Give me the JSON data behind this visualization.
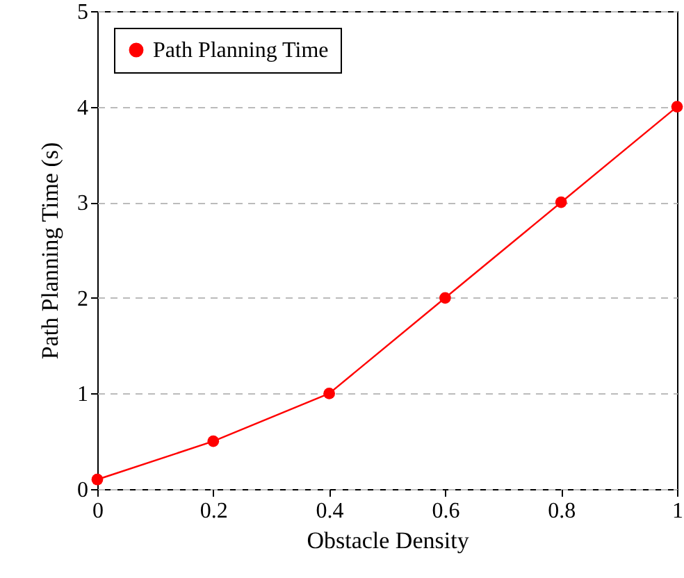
{
  "chart_data": {
    "type": "line",
    "xlabel": "Obstacle Density",
    "ylabel": "Path Planning Time (s)",
    "x": [
      0,
      0.2,
      0.4,
      0.6,
      0.8,
      1
    ],
    "series": [
      {
        "name": "Path Planning Time",
        "color": "#ff0000",
        "values": [
          0.1,
          0.5,
          1,
          2,
          3,
          4
        ]
      }
    ],
    "xlim": [
      0,
      1
    ],
    "ylim": [
      0,
      5
    ],
    "xticks": [
      0,
      0.2,
      0.4,
      0.6,
      0.8,
      1
    ],
    "yticks": [
      0,
      1,
      2,
      3,
      4,
      5
    ],
    "grid": "y",
    "legend": "top left",
    "marker": "circle",
    "line_style": "solid"
  }
}
